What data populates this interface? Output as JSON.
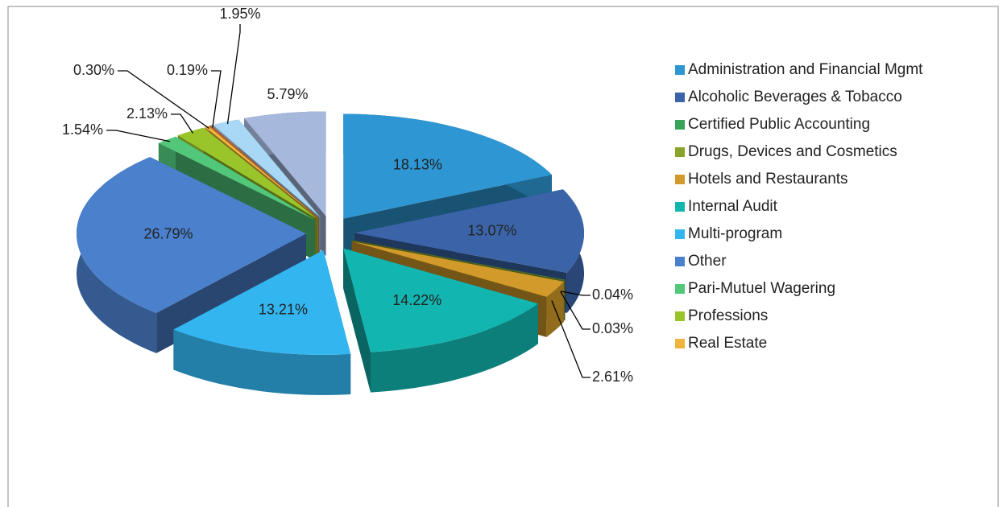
{
  "chart_data": {
    "type": "pie3d",
    "categories": [
      "Administration and Financial Mgmt",
      "Alcoholic Beverages & Tobacco",
      "Certified Public Accounting",
      "Drugs, Devices and Cosmetics",
      "Hotels and Restaurants",
      "Internal Audit",
      "Multi-program",
      "Other",
      "Pari-Mutuel Wagering",
      "Professions",
      "Real Estate",
      null,
      null,
      null
    ],
    "values": [
      18.13,
      13.07,
      0.04,
      0.03,
      2.61,
      14.22,
      13.21,
      26.79,
      1.54,
      2.13,
      0.3,
      0.19,
      1.95,
      5.79
    ],
    "value_labels": [
      "18.13%",
      "13.07%",
      "0.04%",
      "0.03%",
      "2.61%",
      "14.22%",
      "13.21%",
      "26.79%",
      "1.54%",
      "2.13%",
      "0.30%",
      "0.19%",
      "1.95%",
      "5.79%"
    ],
    "colors": [
      "#2e96d2",
      "#3b64a8",
      "#3aa35a",
      "#8aa32a",
      "#d19a2a",
      "#13b5b0",
      "#33b5f0",
      "#4a80cc",
      "#52c77a",
      "#9ac52a",
      "#f0b43a",
      "#b0603a",
      "#a8d8f5",
      "#a6b8dc"
    ],
    "legend": "right"
  }
}
